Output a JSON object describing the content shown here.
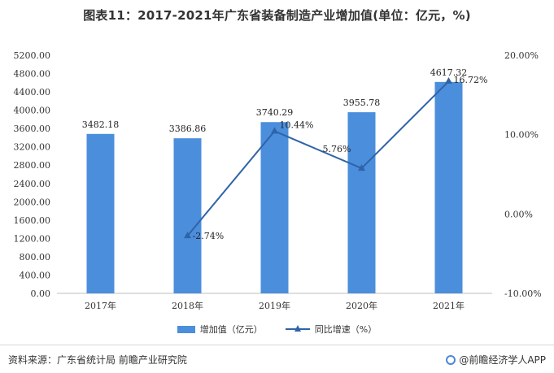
{
  "title": "图表11：2017-2021年广东省装备制造产业增加值(单位：亿元，%)",
  "colors": {
    "bar": "#4b8edc",
    "line": "#2f63a8",
    "axis": "#bfbfbf"
  },
  "chart_data": {
    "type": "bar",
    "categories": [
      "2017年",
      "2018年",
      "2019年",
      "2020年",
      "2021年"
    ],
    "series": [
      {
        "name": "增加值（亿元）",
        "type": "bar",
        "axis": "left",
        "values": [
          3482.18,
          3386.86,
          3740.29,
          3955.78,
          4617.32
        ],
        "labels": [
          "3482.18",
          "3386.86",
          "3740.29",
          "3955.78",
          "4617.32"
        ]
      },
      {
        "name": "同比增速（%）",
        "type": "line",
        "axis": "right",
        "values": [
          null,
          -2.74,
          10.44,
          5.76,
          16.72
        ],
        "labels": [
          "",
          "-2.74%",
          "10.44%",
          "5.76%",
          "16.72%"
        ]
      }
    ],
    "y_left": {
      "min": 0,
      "max": 5200,
      "step": 400,
      "ticks": [
        "0.00",
        "400.00",
        "800.00",
        "1200.00",
        "1600.00",
        "2000.00",
        "2400.00",
        "2800.00",
        "3200.00",
        "3600.00",
        "4000.00",
        "4400.00",
        "4800.00",
        "5200.00"
      ]
    },
    "y_right": {
      "min": -10,
      "max": 20,
      "step": 10,
      "ticks": [
        "-10.00%",
        "0.00%",
        "10.00%",
        "20.00%"
      ]
    },
    "legend": [
      "增加值（亿元）",
      "同比增速（%）"
    ],
    "legend_position": "bottom",
    "grid": false
  },
  "footer": {
    "source": "资料来源：广东省统计局 前瞻产业研究院",
    "brand": "@前瞻经济学人APP"
  }
}
